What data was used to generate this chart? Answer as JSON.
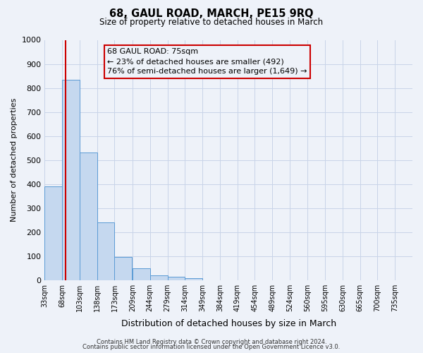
{
  "title": "68, GAUL ROAD, MARCH, PE15 9RQ",
  "subtitle": "Size of property relative to detached houses in March",
  "xlabel": "Distribution of detached houses by size in March",
  "ylabel": "Number of detached properties",
  "bin_labels": [
    "33sqm",
    "68sqm",
    "103sqm",
    "138sqm",
    "173sqm",
    "209sqm",
    "244sqm",
    "279sqm",
    "314sqm",
    "349sqm",
    "384sqm",
    "419sqm",
    "454sqm",
    "489sqm",
    "524sqm",
    "560sqm",
    "595sqm",
    "630sqm",
    "665sqm",
    "700sqm",
    "735sqm"
  ],
  "bar_values": [
    390,
    835,
    530,
    240,
    95,
    50,
    20,
    15,
    7,
    0,
    0,
    0,
    0,
    0,
    0,
    0,
    0,
    0,
    0,
    0
  ],
  "bin_edges": [
    33,
    68,
    103,
    138,
    173,
    209,
    244,
    279,
    314,
    349,
    384,
    419,
    454,
    489,
    524,
    560,
    595,
    630,
    665,
    700,
    735
  ],
  "property_size": 75,
  "bar_color": "#c5d8ef",
  "bar_edge_color": "#5b9bd5",
  "vline_color": "#cc0000",
  "annotation_box_edge": "#cc0000",
  "annotation_line1": "68 GAUL ROAD: 75sqm",
  "annotation_line2": "← 23% of detached houses are smaller (492)",
  "annotation_line3": "76% of semi-detached houses are larger (1,649) →",
  "ylim": [
    0,
    1000
  ],
  "yticks": [
    0,
    100,
    200,
    300,
    400,
    500,
    600,
    700,
    800,
    900,
    1000
  ],
  "footer1": "Contains HM Land Registry data © Crown copyright and database right 2024.",
  "footer2": "Contains public sector information licensed under the Open Government Licence v3.0.",
  "background_color": "#eef2f9",
  "grid_color": "#c8d4e8"
}
